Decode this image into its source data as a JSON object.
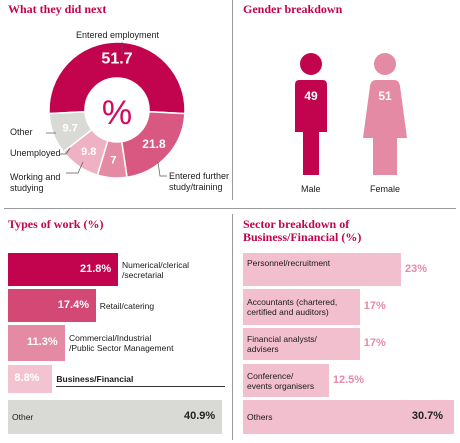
{
  "colors": {
    "accent": "#c2044e",
    "donut": [
      "#c2044e",
      "#d95881",
      "#e48aa5",
      "#efb2c5",
      "#d9d9d6"
    ],
    "male": "#c2044e",
    "female": "#e48aa5",
    "types": [
      "#c2044e",
      "#d34875",
      "#e48aa5",
      "#f3c3d2",
      "#d9d9d6"
    ],
    "sector": "#f2bfcf"
  },
  "chart_data": [
    {
      "type": "pie",
      "title": "What they did next",
      "center_label": "%",
      "slices": [
        {
          "label": "Entered employment",
          "value": 51.7,
          "display": "51.7"
        },
        {
          "label": "Entered further study/training",
          "value": 21.8,
          "display": "21.8"
        },
        {
          "label": "Working and studying",
          "value": 7,
          "display": "7"
        },
        {
          "label": "Unemployed",
          "value": 9.8,
          "display": "9.8"
        },
        {
          "label": "Other",
          "value": 9.7,
          "display": "9.7"
        }
      ],
      "callouts": {
        "employment": "Entered employment",
        "further": [
          "Entered further",
          "study/training"
        ],
        "working": [
          "Working and",
          "studying"
        ],
        "unemployed": "Unemployed",
        "other": "Other"
      }
    },
    {
      "type": "bar",
      "title": "Gender breakdown",
      "categories": [
        "Male",
        "Female"
      ],
      "values": [
        49,
        51
      ]
    },
    {
      "type": "bar",
      "title": "Types of work (%)",
      "categories": [
        [
          "Numerical/clerical",
          "/secretarial"
        ],
        [
          "Retail/catering"
        ],
        [
          "Commercial/Industrial",
          "/Public Sector Management"
        ],
        [
          "Business/Financial"
        ],
        [
          "Other"
        ]
      ],
      "values": [
        21.8,
        17.4,
        11.3,
        8.8,
        40.9
      ],
      "display": [
        "21.8%",
        "17.4%",
        "11.3%",
        "8.8%",
        "40.9%"
      ]
    },
    {
      "type": "bar",
      "title": [
        "Sector breakdown of",
        "Business/Financial (%)"
      ],
      "categories": [
        [
          "Personnel/recruitment"
        ],
        [
          "Accountants (chartered,",
          "certified and auditors)"
        ],
        [
          "Financial analysts/",
          "advisers"
        ],
        [
          "Conference/",
          "events organisers"
        ],
        [
          "Others"
        ]
      ],
      "values": [
        23,
        17,
        17,
        12.5,
        30.7
      ],
      "display": [
        "23%",
        "17%",
        "17%",
        "12.5%",
        "30.7%"
      ]
    }
  ]
}
